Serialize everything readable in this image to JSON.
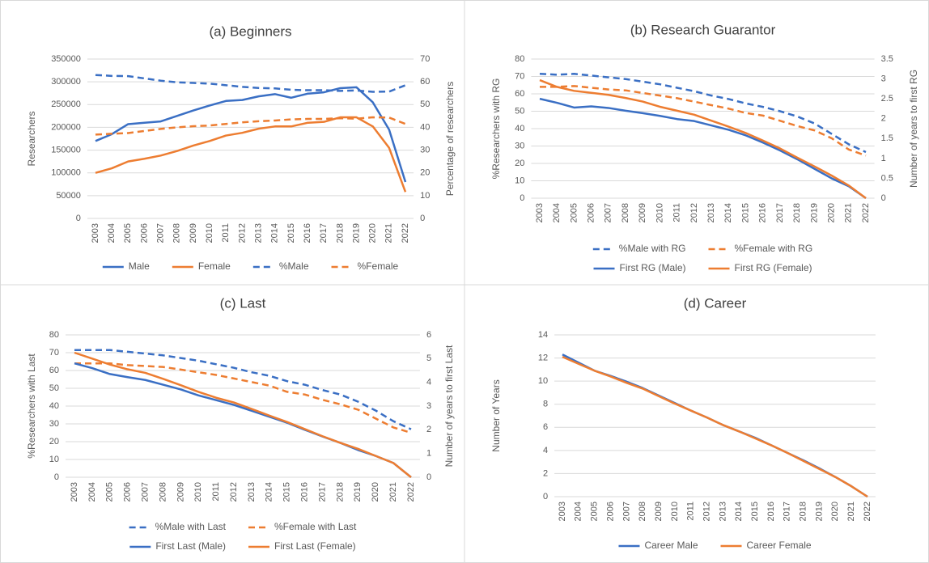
{
  "chart_data": [
    {
      "type": "line",
      "title": "(a) Beginners",
      "ylabel": "Researchers",
      "y2label": "Percentage of researchers",
      "categories": [
        "2003",
        "2004",
        "2005",
        "2006",
        "2007",
        "2008",
        "2009",
        "2010",
        "2011",
        "2012",
        "2013",
        "2014",
        "2015",
        "2016",
        "2017",
        "2018",
        "2019",
        "2020",
        "2021",
        "2022"
      ],
      "series": [
        {
          "name": "Male",
          "color": "#3a6fc4",
          "line_style": "solid",
          "values": [
            170000,
            185000,
            207000,
            210000,
            213000,
            225000,
            237000,
            248000,
            258000,
            260000,
            268000,
            273000,
            265000,
            274000,
            277000,
            286000,
            288000,
            255000,
            195000,
            80000
          ]
        },
        {
          "name": "Female",
          "color": "#ed7d31",
          "line_style": "solid",
          "values": [
            100000,
            110000,
            125000,
            131000,
            138000,
            148000,
            160000,
            170000,
            182000,
            188000,
            197000,
            202000,
            202000,
            210000,
            212000,
            222000,
            222000,
            202000,
            155000,
            58000
          ]
        },
        {
          "name": "%Male",
          "color": "#3a6fc4",
          "line_style": "dashed",
          "axis": "y2",
          "values": [
            63,
            62.6,
            62.5,
            61.5,
            60.5,
            59.8,
            59.5,
            59.2,
            58.5,
            57.8,
            57.3,
            57.1,
            56.5,
            56.3,
            56.3,
            56,
            56.2,
            55.6,
            55.7,
            58.5
          ]
        },
        {
          "name": "%Female",
          "color": "#ed7d31",
          "line_style": "dashed",
          "axis": "y2",
          "values": [
            36.8,
            37.2,
            37.5,
            38.4,
            39.3,
            40,
            40.5,
            40.8,
            41.5,
            42.2,
            42.7,
            43,
            43.5,
            43.7,
            43.7,
            44,
            43.8,
            44.4,
            44.3,
            41.5
          ]
        }
      ],
      "ylim": [
        0,
        350000
      ],
      "yticks": [
        0,
        50000,
        100000,
        150000,
        200000,
        250000,
        300000,
        350000
      ],
      "y2lim": [
        0,
        70
      ],
      "y2ticks": [
        0,
        10,
        20,
        30,
        40,
        50,
        60,
        70
      ],
      "grid": true,
      "legend": "bottom"
    },
    {
      "type": "line",
      "title": "(b) Research Guarantor",
      "ylabel": "%Researchers with RG",
      "y2label": "Number of years to first RG",
      "categories": [
        "2003",
        "2004",
        "2005",
        "2006",
        "2007",
        "2008",
        "2009",
        "2010",
        "2011",
        "2012",
        "2013",
        "2014",
        "2015",
        "2016",
        "2017",
        "2018",
        "2019",
        "2020",
        "2021",
        "2022"
      ],
      "series": [
        {
          "name": "%Male with RG",
          "color": "#3a6fc4",
          "line_style": "dashed",
          "values": [
            71.5,
            71,
            71.5,
            70.5,
            69.5,
            68.5,
            67,
            65.5,
            63.5,
            61.5,
            59,
            57,
            54.5,
            52.5,
            50,
            47,
            43,
            37,
            31,
            26.5
          ]
        },
        {
          "name": "%Female with RG",
          "color": "#ed7d31",
          "line_style": "dashed",
          "values": [
            64,
            64,
            64.5,
            63.5,
            62.5,
            62,
            60.5,
            59,
            57.5,
            55.5,
            53.5,
            51.5,
            49,
            47.5,
            44.5,
            41.5,
            39,
            34.5,
            28,
            24.5
          ]
        },
        {
          "name": "First RG (Male)",
          "color": "#3a6fc4",
          "line_style": "solid",
          "axis": "y2",
          "values": [
            2.5,
            2.4,
            2.28,
            2.31,
            2.27,
            2.2,
            2.14,
            2.07,
            1.99,
            1.94,
            1.83,
            1.72,
            1.58,
            1.4,
            1.2,
            0.98,
            0.74,
            0.5,
            0.3,
            0
          ]
        },
        {
          "name": "First RG (Female)",
          "color": "#ed7d31",
          "line_style": "solid",
          "axis": "y2",
          "values": [
            2.97,
            2.8,
            2.7,
            2.65,
            2.6,
            2.52,
            2.43,
            2.3,
            2.2,
            2.1,
            1.95,
            1.8,
            1.64,
            1.45,
            1.25,
            1.02,
            0.8,
            0.57,
            0.32,
            0
          ]
        }
      ],
      "ylim": [
        0,
        80
      ],
      "yticks": [
        0,
        10,
        20,
        30,
        40,
        50,
        60,
        70,
        80
      ],
      "y2lim": [
        0,
        3.5
      ],
      "y2ticks": [
        0,
        0.5,
        1,
        1.5,
        2,
        2.5,
        3,
        3.5
      ],
      "grid": true,
      "legend": "bottom"
    },
    {
      "type": "line",
      "title": "(c) Last",
      "ylabel": "%Researchers with Last",
      "y2label": "Number of years to first Last",
      "categories": [
        "2003",
        "2004",
        "2005",
        "2006",
        "2007",
        "2008",
        "2009",
        "2010",
        "2011",
        "2012",
        "2013",
        "2014",
        "2015",
        "2016",
        "2017",
        "2018",
        "2019",
        "2020",
        "2021",
        "2022"
      ],
      "series": [
        {
          "name": "%Male with Last",
          "color": "#3a6fc4",
          "line_style": "dashed",
          "values": [
            71.5,
            71.5,
            71.5,
            70.5,
            69.5,
            68.5,
            67,
            65.5,
            63.5,
            61.5,
            59,
            57,
            54,
            52,
            49,
            46.5,
            42.5,
            37.5,
            31.5,
            27
          ]
        },
        {
          "name": "%Female with Last",
          "color": "#ed7d31",
          "line_style": "dashed",
          "values": [
            64,
            64,
            64,
            63,
            62.5,
            62,
            60.5,
            59,
            57.5,
            55.5,
            53.5,
            51.5,
            48,
            46.5,
            43.5,
            41,
            38,
            33,
            28,
            25
          ]
        },
        {
          "name": "First Last (Male)",
          "color": "#3a6fc4",
          "line_style": "solid",
          "axis": "y2",
          "values": [
            4.8,
            4.6,
            4.35,
            4.22,
            4.1,
            3.9,
            3.7,
            3.45,
            3.25,
            3.05,
            2.8,
            2.55,
            2.3,
            2,
            1.72,
            1.45,
            1.15,
            0.9,
            0.6,
            0
          ]
        },
        {
          "name": "First Last (Female)",
          "color": "#ed7d31",
          "line_style": "solid",
          "axis": "y2",
          "values": [
            5.25,
            5,
            4.75,
            4.55,
            4.4,
            4.15,
            3.88,
            3.6,
            3.35,
            3.15,
            2.88,
            2.6,
            2.33,
            2.03,
            1.73,
            1.45,
            1.2,
            0.9,
            0.6,
            0
          ]
        }
      ],
      "ylim": [
        0,
        80
      ],
      "yticks": [
        0,
        10,
        20,
        30,
        40,
        50,
        60,
        70,
        80
      ],
      "y2lim": [
        0,
        6
      ],
      "y2ticks": [
        0,
        1,
        2,
        3,
        4,
        5,
        6
      ],
      "grid": true,
      "legend": "bottom"
    },
    {
      "type": "line",
      "title": "(d) Career",
      "ylabel": "Number of Years",
      "categories": [
        "2003",
        "2004",
        "2005",
        "2006",
        "2007",
        "2008",
        "2009",
        "2010",
        "2011",
        "2012",
        "2013",
        "2014",
        "2015",
        "2016",
        "2017",
        "2018",
        "2019",
        "2020",
        "2021",
        "2022"
      ],
      "series": [
        {
          "name": "Career Male",
          "color": "#3a6fc4",
          "line_style": "solid",
          "values": [
            12.3,
            11.6,
            10.9,
            10.45,
            9.95,
            9.4,
            8.75,
            8.1,
            7.45,
            6.85,
            6.2,
            5.65,
            5.1,
            4.45,
            3.8,
            3.15,
            2.45,
            1.7,
            0.9,
            0
          ]
        },
        {
          "name": "Career Female",
          "color": "#ed7d31",
          "line_style": "solid",
          "values": [
            12.1,
            11.5,
            10.9,
            10.4,
            9.85,
            9.35,
            8.7,
            8.05,
            7.45,
            6.85,
            6.2,
            5.65,
            5.05,
            4.45,
            3.8,
            3.1,
            2.4,
            1.7,
            0.9,
            0
          ]
        }
      ],
      "ylim": [
        0,
        14
      ],
      "yticks": [
        0,
        2,
        4,
        6,
        8,
        10,
        12,
        14
      ],
      "grid": true,
      "legend": "bottom"
    }
  ]
}
